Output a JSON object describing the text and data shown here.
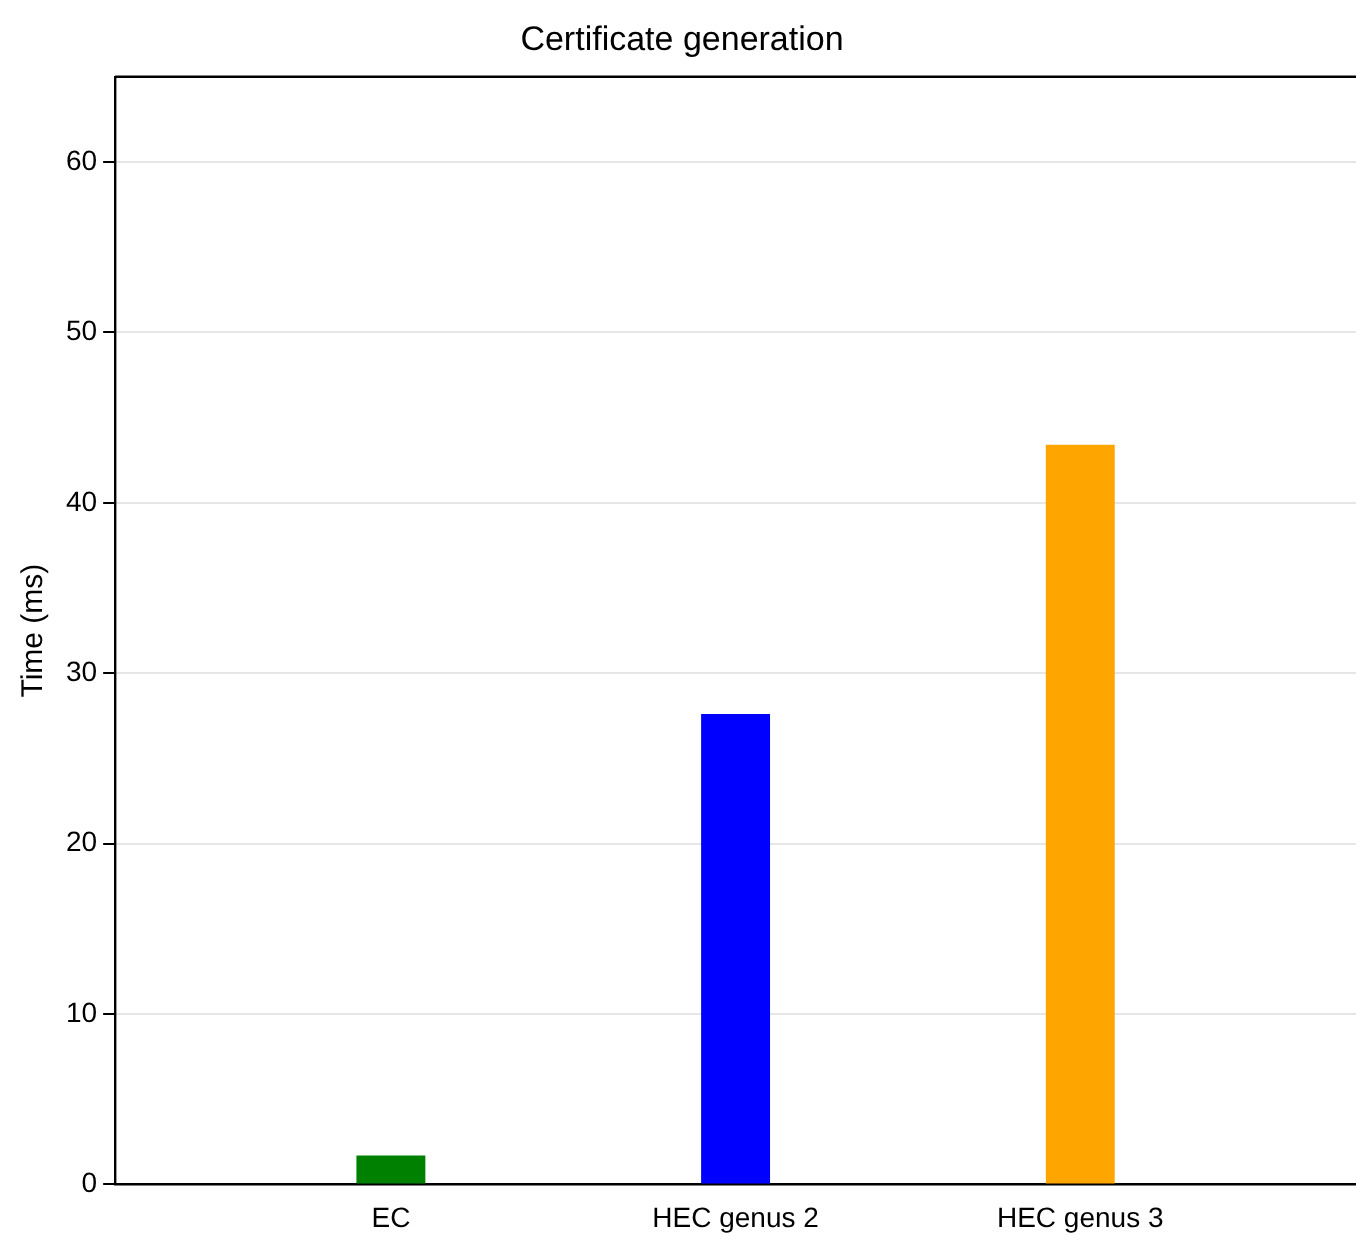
{
  "chart_data": {
    "type": "bar",
    "title": "Certificate generation",
    "ylabel": "Time (ms)",
    "categories": [
      "EC",
      "HEC genus 2",
      "HEC genus 3"
    ],
    "values": [
      1.7,
      27.6,
      43.4
    ],
    "colors": [
      "#008000",
      "#0000ff",
      "#ffa500"
    ],
    "ylim": [
      0,
      65
    ],
    "yticks": [
      0,
      10,
      20,
      30,
      40,
      50,
      60
    ],
    "grid": "y",
    "legend": false
  }
}
